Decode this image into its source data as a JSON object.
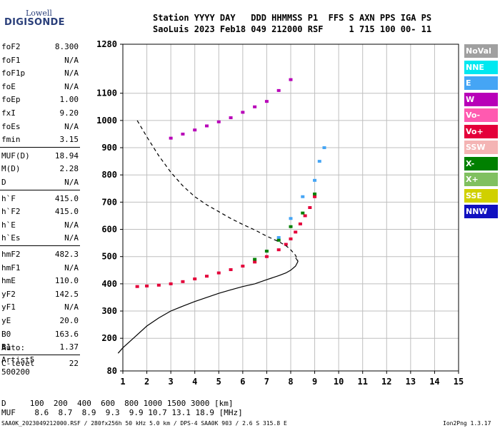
{
  "logo": {
    "top": "Lowell",
    "bottom": "DIGISONDE"
  },
  "header": {
    "line1": "Station YYYY DAY   DDD HHMMSS P1  FFS S AXN PPS IGA PS",
    "line2": "SaoLuis 2023 Feb18 049 212000 RSF     1 715 100 00- 11"
  },
  "params": [
    {
      "name": "foF2",
      "value": "8.300"
    },
    {
      "name": "foF1",
      "value": "N/A"
    },
    {
      "name": "foF1p",
      "value": "N/A"
    },
    {
      "name": "foE",
      "value": "N/A"
    },
    {
      "name": "foEp",
      "value": "1.00"
    },
    {
      "name": "fxI",
      "value": "9.20"
    },
    {
      "name": "foEs",
      "value": "N/A"
    },
    {
      "name": "fmin",
      "value": "3.15"
    },
    {
      "name": "MUF(D)",
      "value": "18.94"
    },
    {
      "name": "M(D)",
      "value": "2.28"
    },
    {
      "name": "D",
      "value": "N/A"
    },
    {
      "name": "h`F",
      "value": "415.0"
    },
    {
      "name": "h`F2",
      "value": "415.0"
    },
    {
      "name": "h`E",
      "value": "N/A"
    },
    {
      "name": "h`Es",
      "value": "N/A"
    },
    {
      "name": "hmF2",
      "value": "482.3"
    },
    {
      "name": "hmF1",
      "value": "N/A"
    },
    {
      "name": "hmE",
      "value": "110.0"
    },
    {
      "name": "yF2",
      "value": "142.5"
    },
    {
      "name": "yF1",
      "value": "N/A"
    },
    {
      "name": "yE",
      "value": "20.0"
    },
    {
      "name": "B0",
      "value": "163.6"
    },
    {
      "name": "B1",
      "value": "1.37"
    },
    {
      "name": "C-level",
      "value": "22"
    }
  ],
  "auto": {
    "line1": "Auto:",
    "line2": "Artist5",
    "line3": "500200"
  },
  "legend": [
    {
      "label": "NoVal",
      "color": "#a0a0a0"
    },
    {
      "label": "NNE",
      "color": "#00e8f0"
    },
    {
      "label": "E",
      "color": "#45a5f5"
    },
    {
      "label": "W",
      "color": "#b800b8"
    },
    {
      "label": "Vo-",
      "color": "#ff5ab0"
    },
    {
      "label": "Vo+",
      "color": "#e4003a"
    },
    {
      "label": "SSW",
      "color": "#f4b4b4"
    },
    {
      "label": "X-",
      "color": "#008000"
    },
    {
      "label": "X+",
      "color": "#80c060"
    },
    {
      "label": "SSE",
      "color": "#d0d000"
    },
    {
      "label": "NNW",
      "color": "#1010c0"
    }
  ],
  "footer": {
    "d_line": "D     100  200  400  600  800 1000 1500 3000 [km]",
    "muf_line": "MUF    8.6  8.7  8.9  9.3  9.9 10.7 13.1 18.9 [MHz]",
    "file_line": "SAA0K_2023049212000.RSF / 280fx256h 50 kHz 5.0 km / DPS-4 SAA0K 903 / 2.6 S 315.8 E",
    "version": "Ion2Png 1.3.17"
  },
  "chart_data": {
    "type": "scatter",
    "xlim": [
      1,
      15
    ],
    "ylim": [
      80,
      1280
    ],
    "x_ticks": [
      1,
      2,
      3,
      4,
      5,
      6,
      7,
      8,
      9,
      10,
      11,
      12,
      13,
      14,
      15
    ],
    "y_ticks": [
      80,
      200,
      300,
      400,
      500,
      600,
      700,
      800,
      900,
      1000,
      1100,
      1280
    ],
    "grid": true,
    "series": [
      {
        "name": "Vo+",
        "color": "#e4003a",
        "x": [
          1.6,
          2.0,
          2.5,
          3.0,
          3.5,
          4.0,
          4.5,
          5.0,
          5.5,
          6.0,
          6.5,
          7.0,
          7.5,
          7.8,
          8.0,
          8.2,
          8.4,
          8.6,
          8.8,
          9.0
        ],
        "y": [
          390,
          392,
          395,
          400,
          408,
          418,
          428,
          440,
          452,
          465,
          480,
          500,
          525,
          545,
          565,
          590,
          620,
          650,
          680,
          720
        ]
      },
      {
        "name": "W",
        "color": "#b800b8",
        "x": [
          3.0,
          3.5,
          4.0,
          4.5,
          5.0,
          5.5,
          6.0,
          6.5,
          7.0,
          7.5,
          8.0
        ],
        "y": [
          935,
          950,
          965,
          980,
          995,
          1010,
          1030,
          1050,
          1070,
          1110,
          1150
        ]
      },
      {
        "name": "E",
        "color": "#45a5f5",
        "x": [
          7.0,
          7.5,
          8.0,
          8.5,
          9.0,
          9.2,
          9.4
        ],
        "y": [
          520,
          570,
          640,
          720,
          780,
          850,
          900
        ]
      },
      {
        "name": "X-",
        "color": "#008000",
        "x": [
          6.5,
          7.0,
          7.5,
          8.0,
          8.5,
          9.0
        ],
        "y": [
          490,
          520,
          560,
          610,
          660,
          730
        ]
      }
    ],
    "profile": {
      "x": [
        0.8,
        1.0,
        1.5,
        2.0,
        2.5,
        3.0,
        3.5,
        4.0,
        4.5,
        5.0,
        5.5,
        6.0,
        6.5,
        7.0,
        7.5,
        7.8,
        8.0,
        8.2,
        8.3,
        8.25,
        8.2
      ],
      "y": [
        145,
        165,
        205,
        245,
        275,
        300,
        318,
        335,
        350,
        365,
        378,
        390,
        400,
        415,
        430,
        440,
        450,
        465,
        482,
        490,
        495
      ]
    },
    "virtual_height": {
      "x": [
        1.6,
        2.0,
        2.5,
        3.0,
        3.5,
        4.0,
        4.5,
        5.0,
        5.5,
        6.0,
        6.5,
        7.0,
        7.5,
        7.8,
        8.0,
        8.2,
        8.3
      ],
      "y": [
        1000,
        940,
        870,
        810,
        760,
        720,
        690,
        665,
        640,
        618,
        598,
        575,
        555,
        540,
        525,
        505,
        485
      ]
    }
  }
}
